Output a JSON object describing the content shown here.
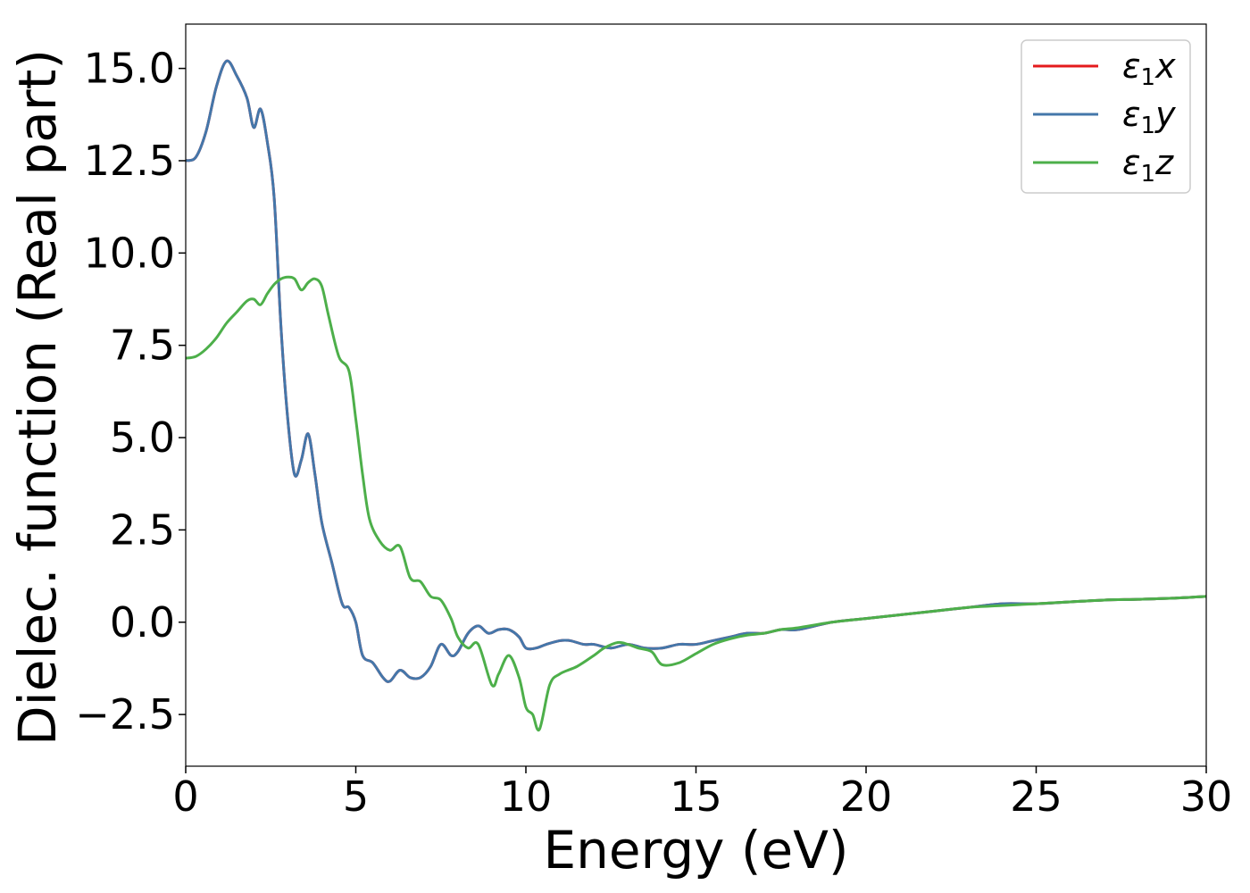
{
  "chart_data": {
    "type": "line",
    "title": "",
    "xlabel": "Energy (eV)",
    "ylabel": "Dielec. function (Real part)",
    "xlim": [
      0,
      30
    ],
    "ylim": [
      -3.9,
      16.2
    ],
    "xticks": [
      0,
      5,
      10,
      15,
      20,
      25,
      30
    ],
    "xtick_labels": [
      "0",
      "5",
      "10",
      "15",
      "20",
      "25",
      "30"
    ],
    "yticks": [
      -2.5,
      0.0,
      2.5,
      5.0,
      7.5,
      10.0,
      12.5,
      15.0
    ],
    "ytick_labels": [
      "−2.5",
      "0.0",
      "2.5",
      "5.0",
      "7.5",
      "10.0",
      "12.5",
      "15.0"
    ],
    "grid": false,
    "legend_position": "top-right",
    "series": [
      {
        "name": "ε1x",
        "legend_base": "ε",
        "legend_sub": "1",
        "legend_suffix": "x",
        "color": "#e41a1c",
        "x": [
          0,
          0.3,
          0.6,
          0.9,
          1.2,
          1.5,
          1.8,
          2.0,
          2.2,
          2.4,
          2.6,
          2.8,
          3.0,
          3.2,
          3.4,
          3.6,
          3.8,
          4.0,
          4.3,
          4.6,
          4.8,
          5.0,
          5.2,
          5.5,
          5.8,
          6.0,
          6.3,
          6.6,
          6.9,
          7.2,
          7.5,
          7.8,
          8.0,
          8.3,
          8.6,
          8.9,
          9.2,
          9.5,
          9.8,
          10.0,
          10.3,
          10.6,
          11.0,
          11.3,
          11.7,
          12.0,
          12.5,
          13.0,
          13.5,
          14.0,
          14.5,
          15.0,
          15.5,
          16.0,
          16.5,
          17.0,
          17.5,
          18.0,
          19.0,
          20.0,
          21.0,
          22.0,
          23.0,
          24.0,
          25.0,
          26.0,
          27.0,
          28.0,
          29.0,
          30.0
        ],
        "values": [
          12.5,
          12.6,
          13.3,
          14.5,
          15.2,
          14.8,
          14.2,
          13.4,
          13.9,
          13.0,
          11.5,
          8.0,
          5.5,
          4.0,
          4.4,
          5.1,
          4.0,
          2.7,
          1.6,
          0.5,
          0.4,
          0.0,
          -0.9,
          -1.1,
          -1.5,
          -1.6,
          -1.3,
          -1.5,
          -1.5,
          -1.2,
          -0.6,
          -0.9,
          -0.8,
          -0.3,
          -0.1,
          -0.3,
          -0.2,
          -0.2,
          -0.4,
          -0.7,
          -0.7,
          -0.6,
          -0.5,
          -0.5,
          -0.6,
          -0.6,
          -0.7,
          -0.6,
          -0.7,
          -0.7,
          -0.6,
          -0.6,
          -0.5,
          -0.4,
          -0.3,
          -0.3,
          -0.2,
          -0.2,
          0.0,
          0.1,
          0.2,
          0.3,
          0.4,
          0.5,
          0.5,
          0.55,
          0.6,
          0.62,
          0.65,
          0.7
        ]
      },
      {
        "name": "ε1y",
        "legend_base": "ε",
        "legend_sub": "1",
        "legend_suffix": "y",
        "color": "#4477aa",
        "x": [
          0,
          0.3,
          0.6,
          0.9,
          1.2,
          1.5,
          1.8,
          2.0,
          2.2,
          2.4,
          2.6,
          2.8,
          3.0,
          3.2,
          3.4,
          3.6,
          3.8,
          4.0,
          4.3,
          4.6,
          4.8,
          5.0,
          5.2,
          5.5,
          5.8,
          6.0,
          6.3,
          6.6,
          6.9,
          7.2,
          7.5,
          7.8,
          8.0,
          8.3,
          8.6,
          8.9,
          9.2,
          9.5,
          9.8,
          10.0,
          10.3,
          10.6,
          11.0,
          11.3,
          11.7,
          12.0,
          12.5,
          13.0,
          13.5,
          14.0,
          14.5,
          15.0,
          15.5,
          16.0,
          16.5,
          17.0,
          17.5,
          18.0,
          19.0,
          20.0,
          21.0,
          22.0,
          23.0,
          24.0,
          25.0,
          26.0,
          27.0,
          28.0,
          29.0,
          30.0
        ],
        "values": [
          12.5,
          12.6,
          13.3,
          14.5,
          15.2,
          14.8,
          14.2,
          13.4,
          13.9,
          13.0,
          11.5,
          8.0,
          5.5,
          4.0,
          4.4,
          5.1,
          4.0,
          2.7,
          1.6,
          0.5,
          0.4,
          0.0,
          -0.9,
          -1.1,
          -1.5,
          -1.6,
          -1.3,
          -1.5,
          -1.5,
          -1.2,
          -0.6,
          -0.9,
          -0.8,
          -0.3,
          -0.1,
          -0.3,
          -0.2,
          -0.2,
          -0.4,
          -0.7,
          -0.7,
          -0.6,
          -0.5,
          -0.5,
          -0.6,
          -0.6,
          -0.7,
          -0.6,
          -0.7,
          -0.7,
          -0.6,
          -0.6,
          -0.5,
          -0.4,
          -0.3,
          -0.3,
          -0.2,
          -0.2,
          0.0,
          0.1,
          0.2,
          0.3,
          0.4,
          0.5,
          0.5,
          0.55,
          0.6,
          0.62,
          0.65,
          0.7
        ]
      },
      {
        "name": "ε1z",
        "legend_base": "ε",
        "legend_sub": "1",
        "legend_suffix": "z",
        "color": "#4daf4a",
        "x": [
          0,
          0.3,
          0.6,
          0.9,
          1.2,
          1.5,
          1.8,
          2.0,
          2.2,
          2.4,
          2.6,
          2.8,
          3.0,
          3.2,
          3.4,
          3.6,
          3.8,
          4.0,
          4.2,
          4.5,
          4.8,
          5.0,
          5.2,
          5.4,
          5.7,
          6.0,
          6.3,
          6.6,
          6.9,
          7.2,
          7.5,
          7.8,
          8.0,
          8.3,
          8.6,
          9.0,
          9.2,
          9.5,
          9.8,
          10.0,
          10.2,
          10.4,
          10.7,
          11.0,
          11.5,
          12.0,
          12.3,
          12.7,
          13.0,
          13.3,
          13.7,
          14.0,
          14.5,
          15.0,
          15.5,
          16.0,
          16.5,
          17.0,
          17.5,
          18.0,
          19.0,
          20.0,
          21.0,
          22.0,
          23.0,
          24.0,
          25.0,
          26.0,
          27.0,
          28.0,
          29.0,
          30.0
        ],
        "values": [
          7.15,
          7.2,
          7.4,
          7.7,
          8.1,
          8.4,
          8.7,
          8.75,
          8.6,
          8.9,
          9.15,
          9.3,
          9.35,
          9.3,
          9.0,
          9.2,
          9.3,
          9.1,
          8.3,
          7.2,
          6.8,
          5.5,
          4.0,
          2.8,
          2.2,
          1.95,
          2.05,
          1.2,
          1.1,
          0.7,
          0.6,
          0.1,
          -0.4,
          -0.7,
          -0.6,
          -1.7,
          -1.4,
          -0.9,
          -1.5,
          -2.3,
          -2.5,
          -2.9,
          -1.7,
          -1.4,
          -1.2,
          -0.9,
          -0.7,
          -0.55,
          -0.6,
          -0.7,
          -0.8,
          -1.15,
          -1.1,
          -0.85,
          -0.6,
          -0.45,
          -0.35,
          -0.3,
          -0.2,
          -0.15,
          0.0,
          0.1,
          0.2,
          0.3,
          0.4,
          0.45,
          0.5,
          0.55,
          0.6,
          0.62,
          0.65,
          0.7
        ]
      }
    ]
  }
}
